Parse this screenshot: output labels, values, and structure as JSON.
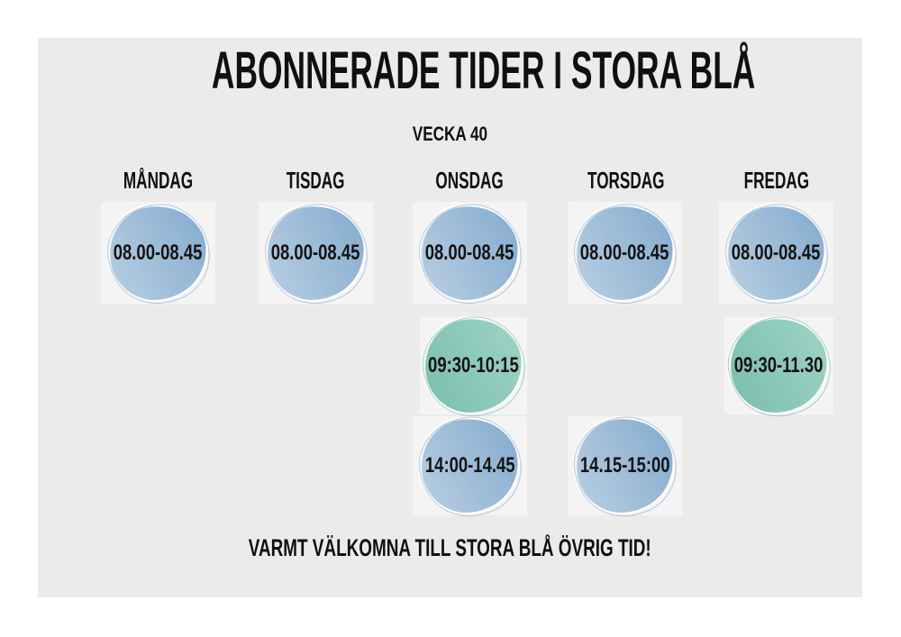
{
  "poster": {
    "title": "ABONNERADE TIDER I STORA BLÅ",
    "week_label": "VECKA 40",
    "footer_message": "VARMT VÄLKOMNA TILL STORA BLÅ ÖVRIG TID!"
  },
  "days": [
    {
      "label": "MÅNDAG",
      "slots": [
        {
          "time": "08.00-08.45",
          "color": "blue",
          "row": 1
        }
      ]
    },
    {
      "label": "TISDAG",
      "slots": [
        {
          "time": "08.00-08.45",
          "color": "blue",
          "row": 1
        }
      ]
    },
    {
      "label": "ONSDAG",
      "slots": [
        {
          "time": "08.00-08.45",
          "color": "blue",
          "row": 1
        },
        {
          "time": "09:30-10:15",
          "color": "green",
          "row": 2
        },
        {
          "time": "14:00-14.45",
          "color": "blue",
          "row": 3
        }
      ]
    },
    {
      "label": "TORSDAG",
      "slots": [
        {
          "time": "08.00-08.45",
          "color": "blue",
          "row": 1
        },
        {
          "time": "14.15-15:00",
          "color": "blue",
          "row": 3
        }
      ]
    },
    {
      "label": "FREDAG",
      "slots": [
        {
          "time": "08.00-08.45",
          "color": "blue",
          "row": 1
        },
        {
          "time": "09:30-11.30",
          "color": "green",
          "row": 2
        }
      ]
    }
  ],
  "colors": {
    "page_background": "#ffffff",
    "canvas_background": "#ebebeb",
    "cell_background": "#f4f4f4",
    "slot_blue": "#88add0",
    "slot_green": "#7fc0b0",
    "text": "#141414"
  }
}
